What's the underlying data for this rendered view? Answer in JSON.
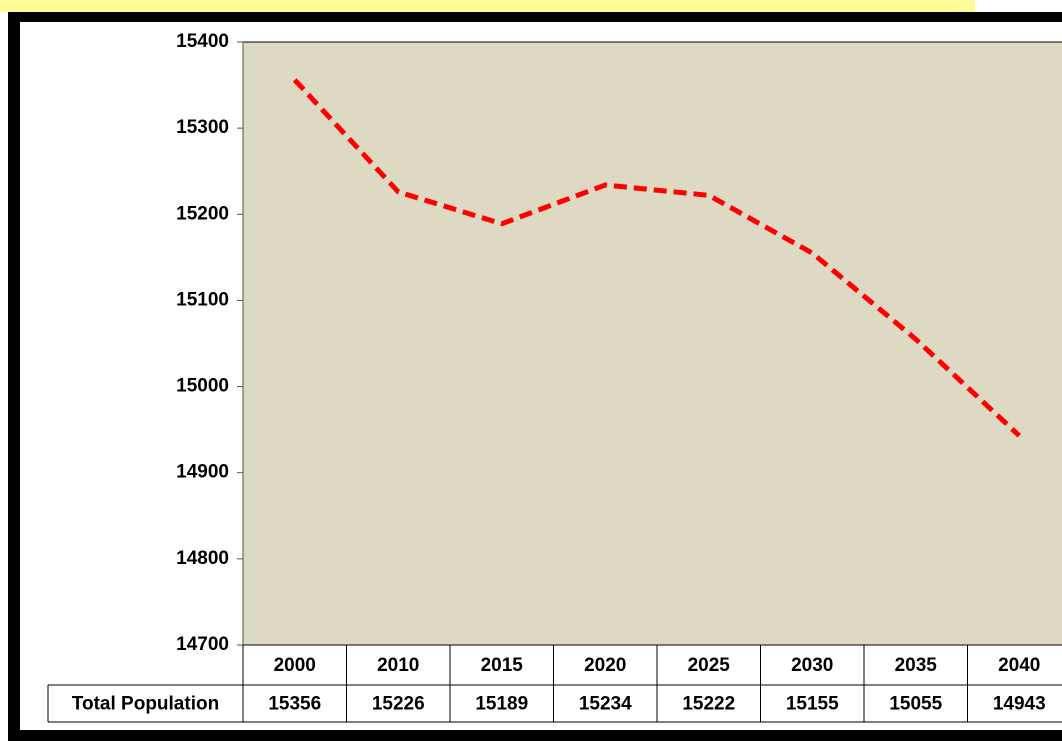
{
  "chart_data": {
    "type": "line",
    "categories": [
      "2000",
      "2010",
      "2015",
      "2020",
      "2025",
      "2030",
      "2035",
      "2040"
    ],
    "series": [
      {
        "name": "Total Population",
        "color": "#ff0000",
        "values": [
          15356,
          15226,
          15189,
          15234,
          15222,
          15155,
          15055,
          14943
        ]
      }
    ],
    "ylim": [
      14700,
      15400
    ],
    "yticks": [
      14700,
      14800,
      14900,
      15000,
      15100,
      15200,
      15300,
      15400
    ],
    "line_style": "dashed",
    "data_table": true
  }
}
